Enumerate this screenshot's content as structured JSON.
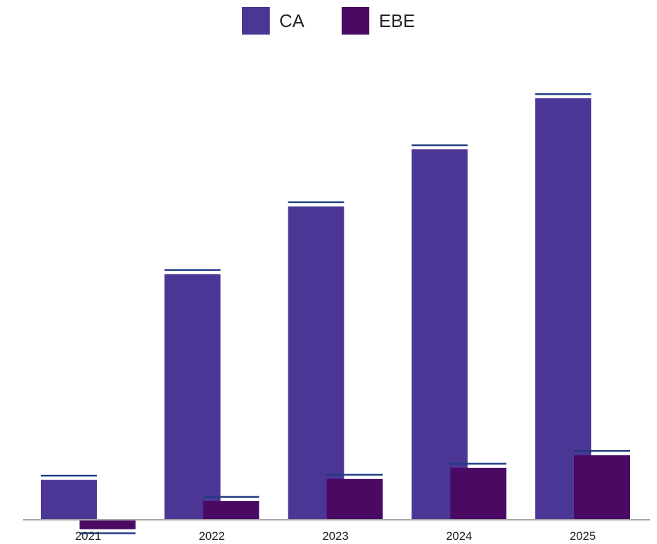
{
  "chart_data": {
    "type": "bar",
    "title": "",
    "xlabel": "",
    "ylabel": "",
    "categories": [
      "2021",
      "2022",
      "2023",
      "2024",
      "2025"
    ],
    "series": [
      {
        "name": "CA",
        "color": "#4b3595",
        "values": [
          94,
          577,
          736,
          870,
          990
        ]
      },
      {
        "name": "EBE",
        "color": "#4a0a63",
        "values": [
          -22,
          44,
          96,
          122,
          152
        ]
      }
    ],
    "error_line_color": "#1f3b84",
    "ylim": [
      -30,
      1040
    ],
    "grid": false,
    "legend_position": "top-center"
  }
}
